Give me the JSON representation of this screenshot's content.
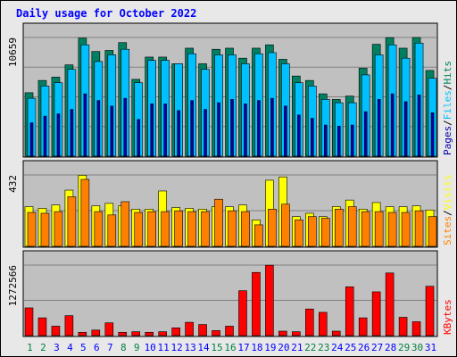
{
  "chart_data": {
    "type": "bar",
    "title": "Daily usage for October 2022",
    "x": [
      1,
      2,
      3,
      4,
      5,
      6,
      7,
      8,
      9,
      10,
      11,
      12,
      13,
      14,
      15,
      16,
      17,
      18,
      19,
      20,
      21,
      22,
      23,
      24,
      25,
      26,
      27,
      28,
      29,
      30,
      31
    ],
    "weekend_days": [
      1,
      2,
      8,
      9,
      15,
      16,
      22,
      23,
      29,
      30
    ],
    "colors": {
      "title": "#0000ff",
      "weekday_label": "#0000ff",
      "weekend_label": "#008040",
      "hits": "#008060",
      "files": "#00c0ff",
      "pages": "#0000b0",
      "visits": "#ffff00",
      "sites": "#ff8000",
      "kbytes": "#ff0000",
      "panel_bg": "#c0c0c0",
      "frame_bg": "#e8e8e8"
    },
    "panels": [
      {
        "id": "hits-files-pages",
        "ymax_label": "10659",
        "ymax": 10659,
        "legend": [
          {
            "name": "Pages",
            "color": "#0000b0"
          },
          {
            "name": "/",
            "color": "#000000"
          },
          {
            "name": "Files",
            "color": "#00c0ff"
          },
          {
            "name": "/",
            "color": "#000000"
          },
          {
            "name": "Hits",
            "color": "#008060"
          }
        ],
        "series": [
          {
            "name": "Hits",
            "color": "#008060",
            "values": [
              5700,
              6800,
              7100,
              8200,
              10600,
              9400,
              9500,
              10200,
              6900,
              8900,
              8900,
              8300,
              9700,
              8300,
              9600,
              9700,
              8800,
              9700,
              10000,
              8700,
              7200,
              6800,
              5600,
              5100,
              5400,
              7900,
              10050,
              10650,
              9700,
              10660,
              7700
            ]
          },
          {
            "name": "Files",
            "color": "#00c0ff",
            "values": [
              5200,
              6300,
              6600,
              7800,
              10000,
              8500,
              9100,
              9600,
              6600,
              8600,
              8600,
              8300,
              9200,
              7800,
              9100,
              9100,
              8300,
              9200,
              9300,
              8300,
              6600,
              6300,
              5100,
              4800,
              4800,
              7300,
              9100,
              10000,
              8800,
              10150,
              7000
            ]
          },
          {
            "name": "Pages",
            "color": "#0000b0",
            "values": [
              3000,
              3600,
              3800,
              4200,
              5600,
              5000,
              4500,
              5200,
              3300,
              4700,
              4700,
              4100,
              5000,
              4200,
              4800,
              5100,
              4700,
              5000,
              5200,
              4500,
              3700,
              3400,
              2800,
              2700,
              2800,
              4000,
              5100,
              5600,
              4900,
              5500,
              3900
            ]
          }
        ]
      },
      {
        "id": "visits-sites",
        "ymax_label": "432",
        "ymax": 432,
        "legend": [
          {
            "name": "Sites",
            "color": "#ff8000"
          },
          {
            "name": "/",
            "color": "#000000"
          },
          {
            "name": "Visits",
            "color": "#ffff00"
          }
        ],
        "series": [
          {
            "name": "Visits",
            "color": "#ffff00",
            "values": [
              240,
              230,
              250,
              340,
              430,
              245,
              260,
              245,
              225,
              225,
              335,
              235,
              230,
              225,
              240,
              240,
              250,
              160,
              400,
              420,
              180,
              200,
              180,
              240,
              280,
              225,
              265,
              240,
              240,
              245,
              220
            ]
          },
          {
            "name": "Sites",
            "color": "#ff8000",
            "values": [
              205,
              200,
              210,
              300,
              405,
              210,
              190,
              270,
              205,
              210,
              210,
              215,
              210,
              210,
              285,
              215,
              210,
              130,
              225,
              255,
              160,
              180,
              170,
              225,
              240,
              210,
              210,
              205,
              205,
              215,
              180
            ]
          }
        ]
      },
      {
        "id": "kbytes",
        "ymax_label": "1272566",
        "ymax": 1272566,
        "legend": [
          {
            "name": "KBytes",
            "color": "#ff0000"
          }
        ],
        "series": [
          {
            "name": "KBytes",
            "color": "#ff0000",
            "values": [
              500000,
              320000,
              170000,
              360000,
              60000,
              100000,
              230000,
              60000,
              70000,
              60000,
              70000,
              140000,
              240000,
              200000,
              90000,
              170000,
              810000,
              1140000,
              1270000,
              80000,
              70000,
              480000,
              420000,
              80000,
              880000,
              320000,
              790000,
              1130000,
              330000,
              250000,
              890000
            ]
          }
        ]
      }
    ]
  }
}
